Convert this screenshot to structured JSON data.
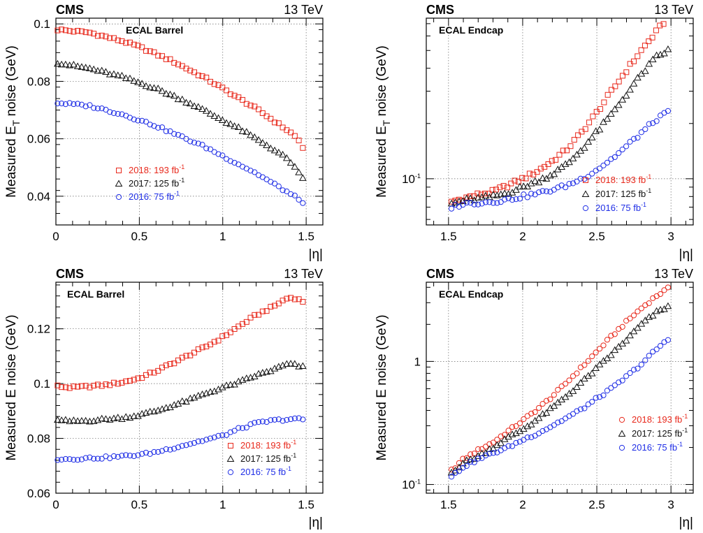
{
  "chart_data": [
    {
      "type": "scatter",
      "experiment": "CMS",
      "energy": "13 TeV",
      "region": "ECAL Barrel",
      "xlabel": "|η|",
      "ylabel_main": "Measured E",
      "ylabel_sub": "T",
      "ylabel_tail": " noise (GeV)",
      "xlim": [
        0,
        1.6
      ],
      "ylim": [
        0.03,
        0.102
      ],
      "yscale": "linear",
      "xticks": [
        0,
        0.5,
        1,
        1.5
      ],
      "xticklabels": [
        "0",
        "0.5",
        "1",
        "1.5"
      ],
      "yticks": [
        0.04,
        0.06,
        0.08,
        0.1
      ],
      "yticklabels": [
        "0.04",
        "0.06",
        "0.08",
        "0.1"
      ],
      "grid": true,
      "legend_position": "bottom-left",
      "series": [
        {
          "name": "2018: 193 fb",
          "name_sup": "-1",
          "color": "#e8291c",
          "marker": "square",
          "anchors": [
            [
              0.01,
              0.098
            ],
            [
              0.1,
              0.0975
            ],
            [
              0.2,
              0.097
            ],
            [
              0.3,
              0.0955
            ],
            [
              0.4,
              0.094
            ],
            [
              0.5,
              0.092
            ],
            [
              0.6,
              0.0895
            ],
            [
              0.7,
              0.087
            ],
            [
              0.8,
              0.084
            ],
            [
              0.9,
              0.081
            ],
            [
              1.0,
              0.0775
            ],
            [
              1.1,
              0.074
            ],
            [
              1.2,
              0.0705
            ],
            [
              1.3,
              0.0665
            ],
            [
              1.4,
              0.0625
            ],
            [
              1.45,
              0.06
            ],
            [
              1.48,
              0.057
            ]
          ]
        },
        {
          "name": "2017: 125 fb",
          "name_sup": "-1",
          "color": "#111111",
          "marker": "triangle",
          "anchors": [
            [
              0.01,
              0.0865
            ],
            [
              0.1,
              0.0855
            ],
            [
              0.2,
              0.0845
            ],
            [
              0.3,
              0.083
            ],
            [
              0.4,
              0.0815
            ],
            [
              0.5,
              0.0795
            ],
            [
              0.6,
              0.0775
            ],
            [
              0.7,
              0.075
            ],
            [
              0.8,
              0.0725
            ],
            [
              0.9,
              0.0695
            ],
            [
              1.0,
              0.0665
            ],
            [
              1.1,
              0.0635
            ],
            [
              1.2,
              0.06
            ],
            [
              1.3,
              0.0565
            ],
            [
              1.4,
              0.0525
            ],
            [
              1.48,
              0.046
            ]
          ]
        },
        {
          "name": "2016: 75 fb",
          "name_sup": "-1",
          "color": "#1f2ee6",
          "marker": "circle",
          "anchors": [
            [
              0.01,
              0.0725
            ],
            [
              0.1,
              0.072
            ],
            [
              0.2,
              0.0715
            ],
            [
              0.3,
              0.07
            ],
            [
              0.4,
              0.0685
            ],
            [
              0.5,
              0.0665
            ],
            [
              0.6,
              0.0645
            ],
            [
              0.7,
              0.062
            ],
            [
              0.8,
              0.0595
            ],
            [
              0.9,
              0.057
            ],
            [
              1.0,
              0.054
            ],
            [
              1.1,
              0.051
            ],
            [
              1.2,
              0.048
            ],
            [
              1.3,
              0.0445
            ],
            [
              1.4,
              0.041
            ],
            [
              1.48,
              0.038
            ]
          ]
        }
      ]
    },
    {
      "type": "scatter",
      "experiment": "CMS",
      "energy": "13 TeV",
      "region": "ECAL Endcap",
      "xlabel": "|η|",
      "ylabel_main": "Measured E",
      "ylabel_sub": "T",
      "ylabel_tail": " noise (GeV)",
      "xlim": [
        1.35,
        3.15
      ],
      "ylim": [
        0.056,
        0.75
      ],
      "yscale": "log",
      "xticks": [
        1.5,
        2,
        2.5,
        3
      ],
      "xticklabels": [
        "1.5",
        "2",
        "2.5",
        "3"
      ],
      "yticks": [
        0.1
      ],
      "yticklabels": [
        "10",
        "-1"
      ],
      "grid": true,
      "legend_position": "bottom-right",
      "series": [
        {
          "name": "2018: 193 fb",
          "name_sup": "-1",
          "color": "#e8291c",
          "marker": "square",
          "anchors": [
            [
              1.52,
              0.075
            ],
            [
              1.6,
              0.078
            ],
            [
              1.7,
              0.082
            ],
            [
              1.8,
              0.085
            ],
            [
              1.9,
              0.092
            ],
            [
              2.0,
              0.1
            ],
            [
              2.1,
              0.11
            ],
            [
              2.2,
              0.125
            ],
            [
              2.3,
              0.145
            ],
            [
              2.4,
              0.18
            ],
            [
              2.5,
              0.23
            ],
            [
              2.6,
              0.3
            ],
            [
              2.7,
              0.39
            ],
            [
              2.8,
              0.5
            ],
            [
              2.9,
              0.63
            ],
            [
              2.95,
              0.71
            ]
          ]
        },
        {
          "name": "2017: 125 fb",
          "name_sup": "-1",
          "color": "#111111",
          "marker": "triangle",
          "anchors": [
            [
              1.52,
              0.073
            ],
            [
              1.6,
              0.076
            ],
            [
              1.7,
              0.078
            ],
            [
              1.8,
              0.08
            ],
            [
              1.9,
              0.084
            ],
            [
              2.0,
              0.09
            ],
            [
              2.1,
              0.097
            ],
            [
              2.2,
              0.106
            ],
            [
              2.3,
              0.12
            ],
            [
              2.4,
              0.145
            ],
            [
              2.5,
              0.18
            ],
            [
              2.6,
              0.225
            ],
            [
              2.7,
              0.29
            ],
            [
              2.8,
              0.37
            ],
            [
              2.9,
              0.46
            ],
            [
              2.98,
              0.5
            ]
          ]
        },
        {
          "name": "2016: 75 fb",
          "name_sup": "-1",
          "color": "#1f2ee6",
          "marker": "circle",
          "anchors": [
            [
              1.52,
              0.07
            ],
            [
              1.6,
              0.073
            ],
            [
              1.7,
              0.074
            ],
            [
              1.8,
              0.075
            ],
            [
              1.9,
              0.077
            ],
            [
              2.0,
              0.08
            ],
            [
              2.1,
              0.083
            ],
            [
              2.2,
              0.087
            ],
            [
              2.3,
              0.092
            ],
            [
              2.4,
              0.1
            ],
            [
              2.5,
              0.112
            ],
            [
              2.6,
              0.128
            ],
            [
              2.7,
              0.15
            ],
            [
              2.8,
              0.178
            ],
            [
              2.9,
              0.21
            ],
            [
              2.98,
              0.23
            ]
          ]
        }
      ]
    },
    {
      "type": "scatter",
      "experiment": "CMS",
      "energy": "13 TeV",
      "region": "ECAL Barrel",
      "xlabel": "|η|",
      "ylabel_main": "Measured E noise (GeV)",
      "ylabel_sub": "",
      "ylabel_tail": "",
      "xlim": [
        0,
        1.6
      ],
      "ylim": [
        0.06,
        0.137
      ],
      "yscale": "linear",
      "xticks": [
        0,
        0.5,
        1,
        1.5
      ],
      "xticklabels": [
        "0",
        "0.5",
        "1",
        "1.5"
      ],
      "yticks": [
        0.06,
        0.08,
        0.1,
        0.12
      ],
      "yticklabels": [
        "0.06",
        "0.08",
        "0.1",
        "0.12"
      ],
      "grid": true,
      "legend_position": "bottom-right",
      "series": [
        {
          "name": "2018: 193 fb",
          "name_sup": "-1",
          "color": "#e8291c",
          "marker": "square",
          "anchors": [
            [
              0.01,
              0.099
            ],
            [
              0.1,
              0.0985
            ],
            [
              0.2,
              0.099
            ],
            [
              0.3,
              0.0995
            ],
            [
              0.4,
              0.1005
            ],
            [
              0.5,
              0.102
            ],
            [
              0.6,
              0.1045
            ],
            [
              0.7,
              0.1075
            ],
            [
              0.8,
              0.1105
            ],
            [
              0.9,
              0.1135
            ],
            [
              1.0,
              0.117
            ],
            [
              1.1,
              0.121
            ],
            [
              1.2,
              0.125
            ],
            [
              1.3,
              0.128
            ],
            [
              1.38,
              0.131
            ],
            [
              1.42,
              0.1315
            ],
            [
              1.48,
              0.13
            ]
          ]
        },
        {
          "name": "2017: 125 fb",
          "name_sup": "-1",
          "color": "#111111",
          "marker": "triangle",
          "anchors": [
            [
              0.01,
              0.0865
            ],
            [
              0.1,
              0.0862
            ],
            [
              0.2,
              0.0865
            ],
            [
              0.3,
              0.087
            ],
            [
              0.4,
              0.0875
            ],
            [
              0.5,
              0.0885
            ],
            [
              0.6,
              0.09
            ],
            [
              0.7,
              0.092
            ],
            [
              0.8,
              0.094
            ],
            [
              0.9,
              0.0965
            ],
            [
              1.0,
              0.0985
            ],
            [
              1.1,
              0.1005
            ],
            [
              1.2,
              0.103
            ],
            [
              1.3,
              0.105
            ],
            [
              1.38,
              0.107
            ],
            [
              1.42,
              0.107
            ],
            [
              1.48,
              0.106
            ]
          ]
        },
        {
          "name": "2016: 75 fb",
          "name_sup": "-1",
          "color": "#1f2ee6",
          "marker": "circle",
          "anchors": [
            [
              0.01,
              0.0725
            ],
            [
              0.1,
              0.0725
            ],
            [
              0.2,
              0.0728
            ],
            [
              0.3,
              0.073
            ],
            [
              0.4,
              0.0735
            ],
            [
              0.5,
              0.074
            ],
            [
              0.6,
              0.075
            ],
            [
              0.7,
              0.0765
            ],
            [
              0.8,
              0.078
            ],
            [
              0.9,
              0.0795
            ],
            [
              1.0,
              0.081
            ],
            [
              1.1,
              0.0835
            ],
            [
              1.2,
              0.0855
            ],
            [
              1.3,
              0.0865
            ],
            [
              1.4,
              0.087
            ],
            [
              1.48,
              0.087
            ]
          ]
        }
      ]
    },
    {
      "type": "scatter",
      "experiment": "CMS",
      "energy": "13 TeV",
      "region": "ECAL Endcap",
      "xlabel": "|η|",
      "ylabel_main": "Measured E noise (GeV)",
      "ylabel_sub": "",
      "ylabel_tail": "",
      "xlim": [
        1.35,
        3.15
      ],
      "ylim": [
        0.085,
        4.4
      ],
      "yscale": "log",
      "xticks": [
        1.5,
        2,
        2.5,
        3
      ],
      "xticklabels": [
        "1.5",
        "2",
        "2.5",
        "3"
      ],
      "yticks": [
        0.1,
        1
      ],
      "yticklabels": [
        "10",
        "-1",
        "1"
      ],
      "grid": true,
      "legend_position": "bottom-right",
      "series": [
        {
          "name": "2018: 193 fb",
          "name_sup": "-1",
          "color": "#e8291c",
          "marker": "circle",
          "anchors": [
            [
              1.52,
              0.13
            ],
            [
              1.6,
              0.16
            ],
            [
              1.7,
              0.19
            ],
            [
              1.8,
              0.22
            ],
            [
              1.9,
              0.27
            ],
            [
              2.0,
              0.33
            ],
            [
              2.1,
              0.41
            ],
            [
              2.2,
              0.52
            ],
            [
              2.3,
              0.68
            ],
            [
              2.4,
              0.9
            ],
            [
              2.5,
              1.2
            ],
            [
              2.6,
              1.6
            ],
            [
              2.7,
              2.1
            ],
            [
              2.8,
              2.7
            ],
            [
              2.9,
              3.4
            ],
            [
              2.98,
              3.9
            ]
          ]
        },
        {
          "name": "2017: 125 fb",
          "name_sup": "-1",
          "color": "#111111",
          "marker": "triangle",
          "anchors": [
            [
              1.52,
              0.125
            ],
            [
              1.6,
              0.15
            ],
            [
              1.7,
              0.17
            ],
            [
              1.8,
              0.2
            ],
            [
              1.9,
              0.24
            ],
            [
              2.0,
              0.28
            ],
            [
              2.1,
              0.34
            ],
            [
              2.2,
              0.42
            ],
            [
              2.3,
              0.53
            ],
            [
              2.4,
              0.68
            ],
            [
              2.5,
              0.88
            ],
            [
              2.6,
              1.15
            ],
            [
              2.7,
              1.5
            ],
            [
              2.8,
              2.0
            ],
            [
              2.9,
              2.5
            ],
            [
              2.98,
              2.8
            ]
          ]
        },
        {
          "name": "2016: 75 fb",
          "name_sup": "-1",
          "color": "#1f2ee6",
          "marker": "circle",
          "anchors": [
            [
              1.52,
              0.115
            ],
            [
              1.6,
              0.14
            ],
            [
              1.7,
              0.16
            ],
            [
              1.8,
              0.18
            ],
            [
              1.9,
              0.2
            ],
            [
              2.0,
              0.23
            ],
            [
              2.1,
              0.26
            ],
            [
              2.2,
              0.3
            ],
            [
              2.3,
              0.35
            ],
            [
              2.4,
              0.41
            ],
            [
              2.5,
              0.5
            ],
            [
              2.6,
              0.6
            ],
            [
              2.7,
              0.75
            ],
            [
              2.8,
              0.95
            ],
            [
              2.9,
              1.25
            ],
            [
              2.98,
              1.5
            ]
          ]
        }
      ]
    }
  ]
}
